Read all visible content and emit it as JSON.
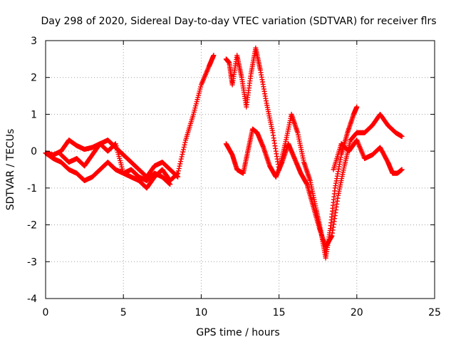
{
  "chart_data": {
    "type": "scatter",
    "title": "Day 298 of 2020, Sidereal Day-to-day VTEC variation (SDTVAR) for receiver flrs",
    "xlabel": "GPS time / hours",
    "ylabel": "SDTVAR / TECUs",
    "xlim": [
      0,
      25
    ],
    "ylim": [
      -4,
      3
    ],
    "xticks": [
      "0",
      "5",
      "10",
      "15",
      "20",
      "25"
    ],
    "yticks": [
      "-4",
      "-3",
      "-2",
      "-1",
      "0",
      "1",
      "2",
      "3"
    ],
    "grid": true,
    "marker": "+",
    "series": [
      {
        "name": "trace-a",
        "color": "#ff0000",
        "x": [
          0,
          0.5,
          1.0,
          1.5,
          2.0,
          2.5,
          3.0,
          3.5,
          4.0,
          4.5,
          5.0,
          5.5,
          6.0,
          6.5,
          7.0,
          7.5,
          8.0,
          8.5,
          9.0,
          9.5,
          10.0,
          10.5,
          10.8
        ],
        "y": [
          -0.05,
          -0.1,
          0.0,
          0.3,
          0.15,
          0.05,
          0.1,
          0.2,
          0.0,
          0.2,
          -0.6,
          -0.7,
          -0.8,
          -1.0,
          -0.7,
          -0.5,
          -0.8,
          -0.6,
          0.3,
          1.0,
          1.8,
          2.3,
          2.6
        ]
      },
      {
        "name": "trace-b",
        "color": "#ff0000",
        "x": [
          0,
          0.5,
          1.0,
          1.5,
          2.0,
          2.5,
          3.0,
          3.5,
          4.0,
          4.5,
          5.0,
          5.5,
          6.0,
          6.5,
          7.0,
          7.5,
          8.0
        ],
        "y": [
          -0.05,
          -0.2,
          -0.3,
          -0.5,
          -0.6,
          -0.8,
          -0.7,
          -0.5,
          -0.3,
          -0.5,
          -0.6,
          -0.5,
          -0.7,
          -0.8,
          -0.6,
          -0.7,
          -0.9
        ]
      },
      {
        "name": "trace-c",
        "color": "#ff0000",
        "x": [
          1.0,
          1.5,
          2.0,
          2.5,
          3.0,
          3.5,
          4.0,
          4.5,
          5.0,
          5.5,
          6.0,
          6.5,
          7.0,
          7.5,
          8.0,
          8.5
        ],
        "y": [
          -0.1,
          -0.3,
          -0.2,
          -0.4,
          -0.1,
          0.2,
          0.3,
          0.1,
          -0.1,
          -0.3,
          -0.5,
          -0.7,
          -0.4,
          -0.3,
          -0.5,
          -0.7
        ]
      },
      {
        "name": "trace-d",
        "color": "#ff0000",
        "x": [
          11.6,
          11.8,
          12.0,
          12.3,
          12.6,
          12.9,
          13.2,
          13.5,
          13.8,
          14.2,
          14.6,
          15.0,
          15.4,
          15.8,
          16.2,
          16.6,
          17.0,
          17.4,
          17.7,
          18.0,
          18.3,
          18.6,
          19.0,
          19.4,
          19.8,
          20.0
        ],
        "y": [
          2.5,
          2.4,
          1.8,
          2.6,
          2.0,
          1.2,
          2.1,
          2.8,
          2.2,
          1.3,
          0.5,
          -0.5,
          0.2,
          1.0,
          0.5,
          -0.3,
          -0.8,
          -1.6,
          -2.2,
          -2.9,
          -2.1,
          -1.0,
          -0.1,
          0.5,
          1.0,
          1.2
        ]
      },
      {
        "name": "trace-e",
        "color": "#ff0000",
        "x": [
          11.6,
          12.0,
          12.3,
          12.7,
          13.0,
          13.3,
          13.6,
          14.0,
          14.4,
          14.8,
          15.2,
          15.6,
          16.0,
          16.4,
          16.8,
          17.2,
          17.6,
          18.0,
          18.4,
          18.8,
          19.2,
          19.6,
          20.0,
          20.5,
          21.0,
          21.5,
          22.0,
          22.5,
          22.9
        ],
        "y": [
          0.2,
          -0.1,
          -0.5,
          -0.6,
          0.0,
          0.6,
          0.5,
          0.1,
          -0.4,
          -0.7,
          -0.3,
          0.2,
          -0.2,
          -0.6,
          -0.9,
          -1.5,
          -2.1,
          -2.6,
          -2.3,
          -1.2,
          -0.4,
          0.3,
          0.5,
          0.5,
          0.7,
          1.0,
          0.7,
          0.5,
          0.4
        ]
      },
      {
        "name": "trace-f",
        "color": "#ff0000",
        "x": [
          18.5,
          19.0,
          19.5,
          20.0,
          20.5,
          21.0,
          21.5,
          22.0,
          22.3,
          22.6,
          22.9
        ],
        "y": [
          -0.5,
          0.2,
          0.0,
          0.3,
          -0.2,
          -0.1,
          0.1,
          -0.3,
          -0.6,
          -0.6,
          -0.5
        ]
      }
    ]
  }
}
